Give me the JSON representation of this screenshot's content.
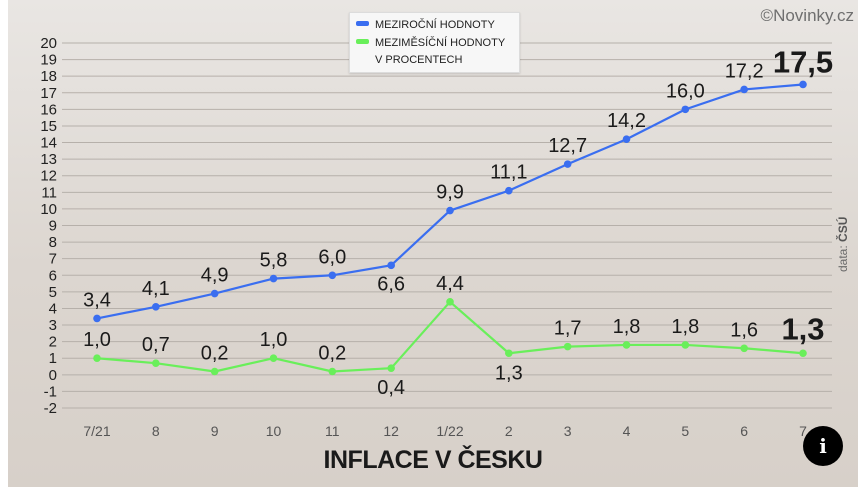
{
  "credit": "©Novinky.cz",
  "source_prefix": "data: ",
  "source_name": "ČSÚ",
  "bottom_title": "INFLACE V ČESKU",
  "info_icon": "i",
  "colors": {
    "blue": "#3a6ef0",
    "green": "#69ef5a",
    "grid": "#b6b0aa"
  },
  "chart_data": {
    "type": "line",
    "title": "INFLACE V ČESKU",
    "categories": [
      "7/21",
      "8",
      "9",
      "10",
      "11",
      "12",
      "1/22",
      "2",
      "3",
      "4",
      "5",
      "6",
      "7"
    ],
    "ylim": [
      -2,
      20
    ],
    "yticks": [
      -2,
      -1,
      0,
      1,
      2,
      3,
      4,
      5,
      6,
      7,
      8,
      9,
      10,
      11,
      12,
      13,
      14,
      15,
      16,
      17,
      18,
      19,
      20
    ],
    "grid": true,
    "legend_position": "top-center",
    "legend": [
      {
        "label": "MEZIROČNÍ HODNOTY",
        "color": "#3a6ef0"
      },
      {
        "label": "MEZIMĚSÍČNÍ HODNOTY\nV PROCENTECH",
        "color": "#69ef5a"
      }
    ],
    "series": [
      {
        "name": "MEZIROČNÍ HODNOTY",
        "color": "#3a6ef0",
        "values": [
          3.4,
          4.1,
          4.9,
          5.8,
          6.0,
          6.6,
          9.9,
          11.1,
          12.7,
          14.2,
          16.0,
          17.2,
          17.5
        ],
        "labels": [
          "3,4",
          "4,1",
          "4,9",
          "5,8",
          "6,0",
          "6,6",
          "9,9",
          "11,1",
          "12,7",
          "14,2",
          "16,0",
          "17,2",
          "17,5"
        ]
      },
      {
        "name": "MEZIMĚSÍČNÍ HODNOTY V PROCENTECH",
        "color": "#69ef5a",
        "values": [
          1.0,
          0.7,
          0.2,
          1.0,
          0.2,
          0.4,
          4.4,
          1.3,
          1.7,
          1.8,
          1.8,
          1.6,
          1.3
        ],
        "labels": [
          "1,0",
          "0,7",
          "0,2",
          "1,0",
          "0,2",
          "0,4",
          "4,4",
          "1,3",
          "1,7",
          "1,8",
          "1,8",
          "1,6",
          "1,3"
        ]
      }
    ]
  }
}
